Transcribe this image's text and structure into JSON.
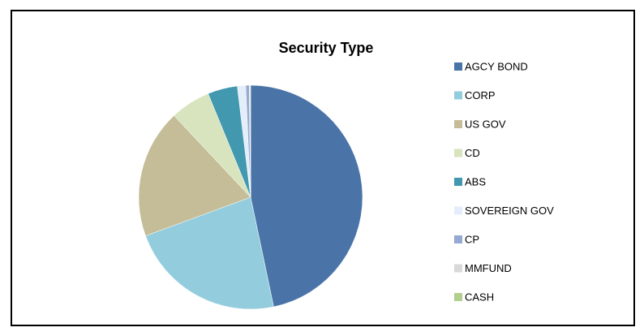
{
  "chart_data": {
    "type": "pie",
    "title": "Security Type",
    "categories": [
      "AGCY BOND",
      "CORP",
      "US GOV",
      "CD",
      "ABS",
      "SOVEREIGN GOV",
      "CP",
      "MMFUND",
      "CASH"
    ],
    "values": [
      46.7,
      22.7,
      18.6,
      5.8,
      4.3,
      1.2,
      0.5,
      0.1,
      0.1
    ],
    "colors": [
      "#4a74a8",
      "#93cddd",
      "#c4bd97",
      "#d7e4bd",
      "#4198af",
      "#e4eefa",
      "#95a9d1",
      "#d9d9d9",
      "#b3cf8f"
    ],
    "legend": "right"
  }
}
